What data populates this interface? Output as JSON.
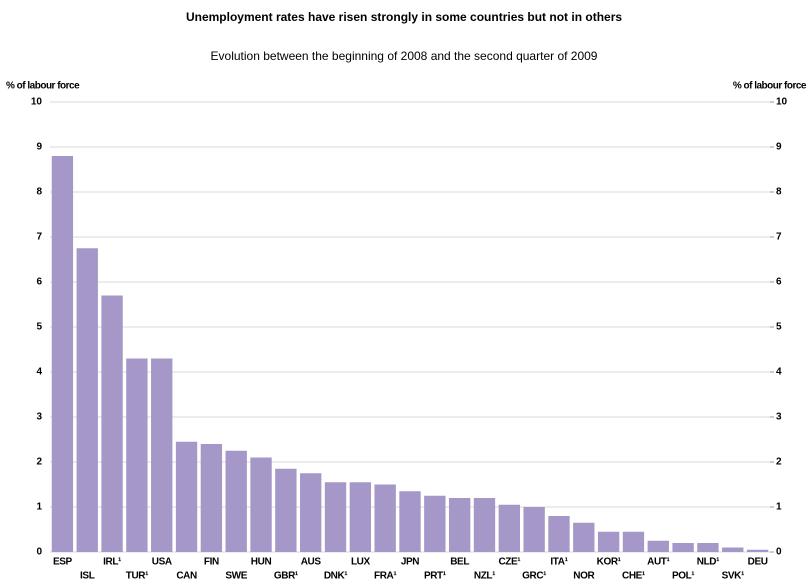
{
  "chart_data": {
    "type": "bar",
    "title": "Unemployment rates have risen strongly in some countries but not in others",
    "subtitle": "Evolution between the beginning of 2008 and the second quarter of 2009",
    "y_label": "% of labour force",
    "y2_label": "% of labour force",
    "categories": [
      "ESP",
      "ISL",
      "IRL¹",
      "TUR¹",
      "USA",
      "CAN",
      "FIN",
      "SWE",
      "HUN",
      "GBR¹",
      "AUS",
      "DNK¹",
      "LUX",
      "FRA¹",
      "JPN",
      "PRT¹",
      "BEL",
      "NZL¹",
      "CZE¹",
      "GRC¹",
      "ITA¹",
      "NOR",
      "KOR¹",
      "CHE¹",
      "AUT¹",
      "POL¹",
      "NLD¹",
      "SVK¹",
      "DEU"
    ],
    "values": [
      8.8,
      6.75,
      5.7,
      4.3,
      4.3,
      2.45,
      2.4,
      2.25,
      2.1,
      1.85,
      1.75,
      1.55,
      1.55,
      1.5,
      1.35,
      1.25,
      1.2,
      1.2,
      1.05,
      1.0,
      0.8,
      0.65,
      0.45,
      0.45,
      0.25,
      0.2,
      0.2,
      0.1,
      0.05
    ],
    "color": "#a597c8",
    "ylim": [
      0,
      10
    ],
    "yticks": [
      0,
      1,
      2,
      3,
      4,
      5,
      6,
      7,
      8,
      9,
      10
    ],
    "y2lim": [
      0,
      10
    ],
    "y2ticks": [
      0,
      1,
      2,
      3,
      4,
      5,
      6,
      7,
      8,
      9,
      10
    ],
    "grid": true
  }
}
